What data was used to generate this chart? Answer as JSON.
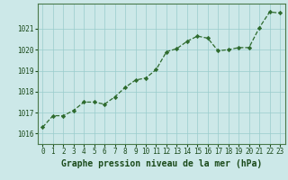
{
  "x": [
    0,
    1,
    2,
    3,
    4,
    5,
    6,
    7,
    8,
    9,
    10,
    11,
    12,
    13,
    14,
    15,
    16,
    17,
    18,
    19,
    20,
    21,
    22,
    23
  ],
  "y": [
    1016.3,
    1016.85,
    1016.85,
    1017.1,
    1017.5,
    1017.5,
    1017.4,
    1017.75,
    1018.2,
    1018.55,
    1018.65,
    1019.05,
    1019.9,
    1020.05,
    1020.4,
    1020.65,
    1020.55,
    1019.95,
    1020.0,
    1020.1,
    1020.1,
    1021.05,
    1021.8,
    1021.75
  ],
  "line_color": "#2d6a2d",
  "marker_color": "#2d6a2d",
  "bg_color": "#cce8e8",
  "grid_color": "#99cccc",
  "title": "Graphe pression niveau de la mer (hPa)",
  "ylim": [
    1015.5,
    1022.2
  ],
  "xlim": [
    -0.5,
    23.5
  ],
  "yticks": [
    1016,
    1017,
    1018,
    1019,
    1020,
    1021
  ],
  "xticks": [
    0,
    1,
    2,
    3,
    4,
    5,
    6,
    7,
    8,
    9,
    10,
    11,
    12,
    13,
    14,
    15,
    16,
    17,
    18,
    19,
    20,
    21,
    22,
    23
  ],
  "title_fontsize": 7.0,
  "tick_fontsize": 5.5,
  "title_color": "#1a4a1a",
  "tick_color": "#1a4a1a",
  "spine_color": "#4a7a4a"
}
